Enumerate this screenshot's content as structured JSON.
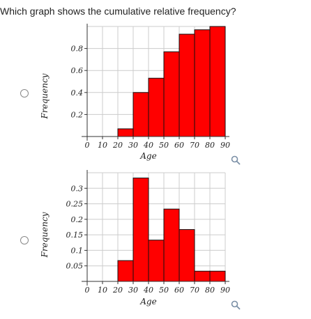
{
  "question": {
    "text": "Which graph shows the cumulative relative frequency?"
  },
  "colors": {
    "bar_fill": "#ff0000",
    "bar_stroke": "#111111",
    "grid": "#cccccc",
    "axis": "#333333"
  },
  "icons": {
    "option_icon": "radio-button",
    "zoom_icon": "magnifier-icon"
  },
  "options": [
    {
      "id": "a"
    },
    {
      "id": "b"
    }
  ],
  "chart_data": [
    {
      "type": "bar",
      "xlabel": "Age",
      "ylabel": "Frequency",
      "bin_edges": [
        0,
        10,
        20,
        30,
        40,
        50,
        60,
        70,
        80,
        90
      ],
      "bins": [
        {
          "from": 20,
          "to": 30,
          "value": 0.07
        },
        {
          "from": 30,
          "to": 40,
          "value": 0.4
        },
        {
          "from": 40,
          "to": 50,
          "value": 0.53
        },
        {
          "from": 50,
          "to": 60,
          "value": 0.77
        },
        {
          "from": 60,
          "to": 70,
          "value": 0.93
        },
        {
          "from": 70,
          "to": 80,
          "value": 0.97
        },
        {
          "from": 80,
          "to": 90,
          "value": 1.0
        }
      ],
      "yticks": [
        "0.2",
        "0.4",
        "0.6",
        "0.8"
      ],
      "ytick_values": [
        0.2,
        0.4,
        0.6,
        0.8
      ],
      "xticks": [
        "0",
        "10",
        "20",
        "30",
        "40",
        "50",
        "60",
        "70",
        "80",
        "90"
      ],
      "ylim": [
        0,
        1.0
      ],
      "xlim": [
        0,
        90
      ],
      "grid": true
    },
    {
      "type": "bar",
      "xlabel": "Age",
      "ylabel": "Frequency",
      "bin_edges": [
        0,
        10,
        20,
        30,
        40,
        50,
        60,
        70,
        80,
        90
      ],
      "bins": [
        {
          "from": 20,
          "to": 30,
          "value": 0.067
        },
        {
          "from": 30,
          "to": 40,
          "value": 0.333
        },
        {
          "from": 40,
          "to": 50,
          "value": 0.133
        },
        {
          "from": 50,
          "to": 60,
          "value": 0.233
        },
        {
          "from": 60,
          "to": 70,
          "value": 0.167
        },
        {
          "from": 70,
          "to": 80,
          "value": 0.033
        },
        {
          "from": 80,
          "to": 90,
          "value": 0.033
        }
      ],
      "yticks": [
        "0.05",
        "0.1",
        "0.15",
        "0.2",
        "0.25",
        "0.3"
      ],
      "ytick_values": [
        0.05,
        0.1,
        0.15,
        0.2,
        0.25,
        0.3
      ],
      "xticks": [
        "0",
        "10",
        "20",
        "30",
        "40",
        "50",
        "60",
        "70",
        "80",
        "90"
      ],
      "ylim": [
        0,
        0.35
      ],
      "xlim": [
        0,
        90
      ],
      "grid": true
    }
  ]
}
